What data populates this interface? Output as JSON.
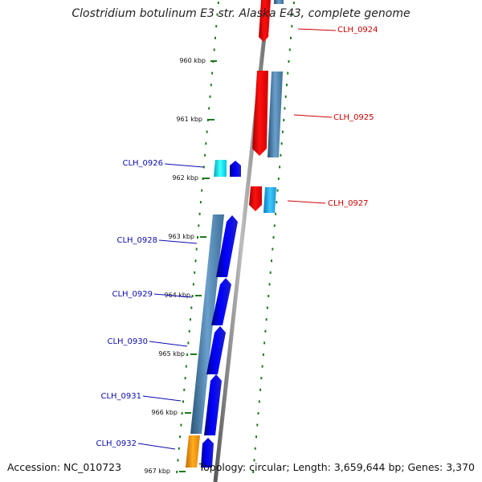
{
  "title": "Clostridium botulinum E3 str. Alaska E43, complete genome",
  "footer": {
    "accession": "Accession: NC_010723",
    "summary": "Topology: circular; Length: 3,659,644 bp; Genes: 3,370"
  },
  "colors": {
    "backbone": "#8a8a8a",
    "tick": "#1f7a1f",
    "forward_label": "#0b0bb0",
    "reverse_label": "#cc0000",
    "gene_blue": "#0000ee",
    "gene_steel": "#4a82b0",
    "gene_red": "#ee0000",
    "gene_cyan": "#00d8e8",
    "gene_sky": "#18a8e8",
    "gene_orange": "#ff9a00"
  },
  "scale_ticks": [
    "960 kbp",
    "961 kbp",
    "962 kbp",
    "963 kbp",
    "964 kbp",
    "965 kbp",
    "966 kbp",
    "967 kbp"
  ],
  "gene_labels": [
    {
      "text": "CLH_0924",
      "strand": "reverse"
    },
    {
      "text": "CLH_0925",
      "strand": "reverse"
    },
    {
      "text": "CLH_0926",
      "strand": "forward"
    },
    {
      "text": "CLH_0927",
      "strand": "reverse"
    },
    {
      "text": "CLH_0928",
      "strand": "forward"
    },
    {
      "text": "CLH_0929",
      "strand": "forward"
    },
    {
      "text": "CLH_0930",
      "strand": "forward"
    },
    {
      "text": "CLH_0931",
      "strand": "forward"
    },
    {
      "text": "CLH_0932",
      "strand": "forward"
    }
  ]
}
